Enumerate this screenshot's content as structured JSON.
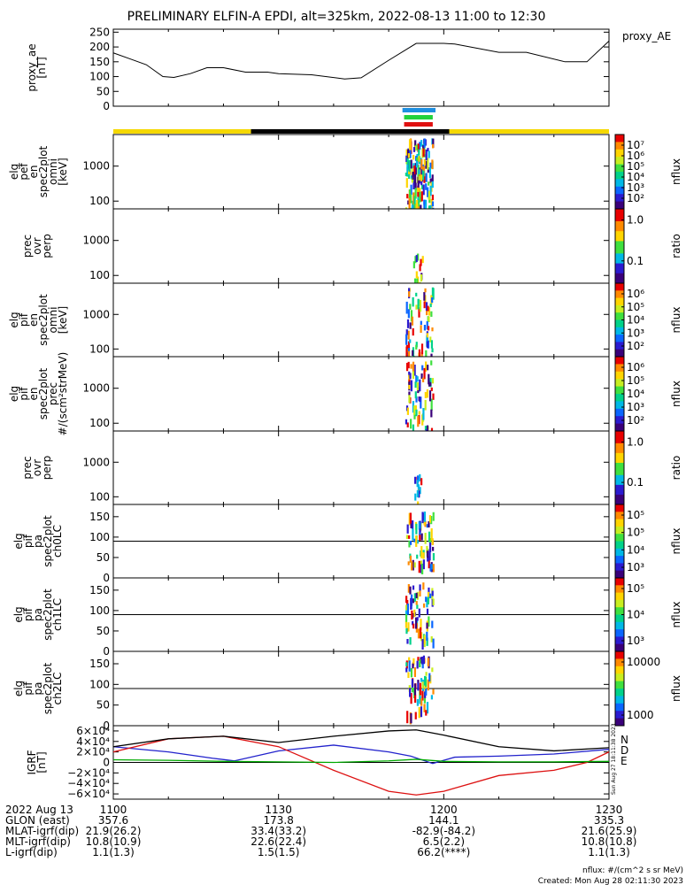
{
  "title": "PRELIMINARY ELFIN-A EPDI, alt=325km, 2022-08-13 11:00 to 12:30",
  "colors": {
    "sunlight": "#f5d800",
    "eclipse": "#000000",
    "bar_blue": "#1f8fe0",
    "bar_green": "#22d23c",
    "bar_red": "#e01010",
    "bn": "#2222cc",
    "bd": "#dd1111",
    "be": "#00aa00",
    "btotal": "#000000"
  },
  "chart_data": [
    {
      "type": "line",
      "id": "proxy_ae",
      "ylabel": [
        "proxy_ae",
        "[nT]"
      ],
      "legend": "proxy_AE",
      "ylim": [
        0,
        260
      ],
      "yticks": [
        "250",
        "200",
        "150",
        "100",
        "50",
        "0"
      ],
      "ytick_values": [
        250,
        200,
        150,
        100,
        50,
        0
      ],
      "x_unit": "minutes after 11:00 UT",
      "x": [
        0,
        3,
        6,
        9,
        11,
        14,
        17,
        20,
        24,
        28,
        30,
        36,
        42,
        45,
        50,
        55,
        60,
        62,
        70,
        75,
        82,
        86,
        90
      ],
      "y": [
        180,
        160,
        140,
        100,
        97,
        110,
        130,
        130,
        115,
        115,
        110,
        106,
        92,
        96,
        155,
        212,
        212,
        210,
        182,
        182,
        150,
        150,
        220
      ]
    },
    {
      "type": "heatmap",
      "id": "elg_pef_en",
      "ylabel": [
        "elg",
        "pef",
        "en",
        "spec2plot",
        "omni",
        "[keV]"
      ],
      "yscale": "log",
      "yticks": [
        "1000",
        "100"
      ],
      "ytick_values": [
        1000,
        100
      ],
      "ylim": [
        60,
        8000
      ],
      "colorbar": {
        "label": "nflux",
        "scale": "log",
        "ticks": [
          "10^7",
          "10^6",
          "10^5",
          "10^4",
          "10^3",
          "10^2"
        ]
      }
    },
    {
      "type": "heatmap",
      "id": "prec_ovr_perp_1",
      "ylabel": [
        "prec",
        "ovr",
        "perp"
      ],
      "yscale": "log",
      "yticks": [
        "1000",
        "100"
      ],
      "ytick_values": [
        1000,
        100
      ],
      "ylim": [
        60,
        8000
      ],
      "colorbar": {
        "label": "ratio",
        "scale": "log",
        "ticks": [
          "1.0",
          "0.1"
        ]
      }
    },
    {
      "type": "heatmap",
      "id": "elg_pif_en_omni",
      "ylabel": [
        "elg",
        "pif",
        "en",
        "spec2plot",
        "omni",
        "[keV]"
      ],
      "yscale": "log",
      "yticks": [
        "1000",
        "100"
      ],
      "ytick_values": [
        1000,
        100
      ],
      "ylim": [
        60,
        8000
      ],
      "colorbar": {
        "label": "nflux",
        "scale": "log",
        "ticks": [
          "10^6",
          "10^5",
          "10^4",
          "10^3",
          "10^2"
        ]
      }
    },
    {
      "type": "heatmap",
      "id": "elg_pif_en_prec",
      "ylabel": [
        "elg",
        "pif",
        "en",
        "spec2plot",
        "prec",
        "#/(scm²strMeV)"
      ],
      "yscale": "log",
      "yticks": [
        "1000",
        "100"
      ],
      "ytick_values": [
        1000,
        100
      ],
      "ylim": [
        60,
        8000
      ],
      "colorbar": {
        "label": "nflux",
        "scale": "log",
        "ticks": [
          "10^6",
          "10^5",
          "10^4",
          "10^3",
          "10^2"
        ]
      }
    },
    {
      "type": "heatmap",
      "id": "prec_ovr_perp_2",
      "ylabel": [
        "prec",
        "ovr",
        "perp"
      ],
      "yscale": "log",
      "yticks": [
        "1000",
        "100"
      ],
      "ytick_values": [
        1000,
        100
      ],
      "ylim": [
        60,
        8000
      ],
      "colorbar": {
        "label": "ratio",
        "scale": "log",
        "ticks": [
          "1.0",
          "0.1"
        ]
      }
    },
    {
      "type": "heatmap",
      "id": "elg_pif_pa_ch0LC",
      "ylabel": [
        "elg",
        "pif",
        "pa",
        "spec2plot",
        "ch0LC"
      ],
      "yticks": [
        "150",
        "100",
        "50",
        "0"
      ],
      "ytick_values": [
        150,
        100,
        50,
        0
      ],
      "ylim": [
        0,
        180
      ],
      "ref_line": 90,
      "colorbar": {
        "label": "nflux",
        "scale": "log",
        "ticks": [
          "10^5",
          "10^5",
          "10^4",
          "10^3"
        ]
      }
    },
    {
      "type": "heatmap",
      "id": "elg_pif_pa_ch1LC",
      "ylabel": [
        "elg",
        "pif",
        "pa",
        "spec2plot",
        "ch1LC"
      ],
      "yticks": [
        "150",
        "100",
        "50",
        "0"
      ],
      "ytick_values": [
        150,
        100,
        50,
        0
      ],
      "ylim": [
        0,
        180
      ],
      "ref_line": 90,
      "colorbar": {
        "label": "nflux",
        "scale": "log",
        "ticks": [
          "10^5",
          "10^4",
          "10^3"
        ]
      }
    },
    {
      "type": "heatmap",
      "id": "elg_pif_pa_ch2LC",
      "ylabel": [
        "elg",
        "pif",
        "pa",
        "spec2plot",
        "ch2LC"
      ],
      "yticks": [
        "150",
        "100",
        "50",
        "0"
      ],
      "ytick_values": [
        150,
        100,
        50,
        0
      ],
      "ylim": [
        0,
        180
      ],
      "ref_line": 90,
      "colorbar": {
        "label": "nflux",
        "scale": "log",
        "ticks": [
          "10000",
          "1000"
        ]
      }
    },
    {
      "type": "line",
      "id": "igrf",
      "ylabel": [
        "IGRF",
        "[nT]"
      ],
      "ylim": [
        -70000,
        70000
      ],
      "yticks": [
        "6×10⁴",
        "4×10⁴",
        "2×10⁴",
        "0",
        "−2×10⁴",
        "−4×10⁴",
        "−6×10⁴"
      ],
      "ytick_values": [
        60000,
        40000,
        20000,
        0,
        -20000,
        -40000,
        -60000
      ],
      "legend": [
        "N",
        "D",
        "E"
      ],
      "series": [
        {
          "name": "N",
          "color": "#2222cc",
          "x": [
            0,
            10,
            18,
            22,
            30,
            40,
            50,
            54,
            58,
            62,
            70,
            80,
            90
          ],
          "y": [
            30000,
            20000,
            8000,
            3000,
            22000,
            33000,
            20000,
            12000,
            -2000,
            10000,
            12000,
            16000,
            25000
          ]
        },
        {
          "name": "D",
          "color": "#dd1111",
          "x": [
            0,
            10,
            20,
            30,
            40,
            50,
            55,
            60,
            70,
            80,
            86,
            90
          ],
          "y": [
            20000,
            45000,
            50000,
            30000,
            -15000,
            -55000,
            -62000,
            -55000,
            -25000,
            -15000,
            0,
            20000
          ]
        },
        {
          "name": "E",
          "color": "#00aa00",
          "x": [
            0,
            10,
            20,
            30,
            40,
            50,
            55,
            60,
            70,
            80,
            90
          ],
          "y": [
            5000,
            4000,
            2000,
            1000,
            0,
            3000,
            6000,
            2000,
            1000,
            1000,
            2000
          ]
        },
        {
          "name": "",
          "color": "#000000",
          "x": [
            0,
            10,
            20,
            30,
            40,
            50,
            55,
            60,
            70,
            80,
            90
          ],
          "y": [
            30000,
            45000,
            50000,
            38000,
            50000,
            60000,
            62000,
            52000,
            30000,
            22000,
            28000
          ]
        }
      ]
    }
  ],
  "side_stamp": "Sun Aug 27 18:11:38 2023",
  "xaxis": {
    "row_labels": [
      "2022 Aug 13",
      "GLON (east)",
      "MLAT-igrf(dip)",
      "MLT-igrf(dip)",
      "L-igrf(dip)"
    ],
    "columns": [
      {
        "t": 0,
        "values": [
          "1100",
          "357.6",
          "21.9(26.2)",
          "10.8(10.9)",
          "1.1(1.3)"
        ]
      },
      {
        "t": 30,
        "values": [
          "1130",
          "173.8",
          "33.4(33.2)",
          "22.6(22.4)",
          "1.5(1.5)"
        ]
      },
      {
        "t": 60,
        "values": [
          "1200",
          "144.1",
          "-82.9(-84.2)",
          "6.5(2.2)",
          "66.2(****)"
        ]
      },
      {
        "t": 90,
        "values": [
          "1230",
          "335.3",
          "21.6(25.9)",
          "10.8(10.8)",
          "1.1(1.3)"
        ]
      }
    ]
  },
  "footer": {
    "units": "nflux: #/(cm^2 s sr MeV)",
    "created": "Created: Mon Aug 28 02:11:30 2023"
  }
}
